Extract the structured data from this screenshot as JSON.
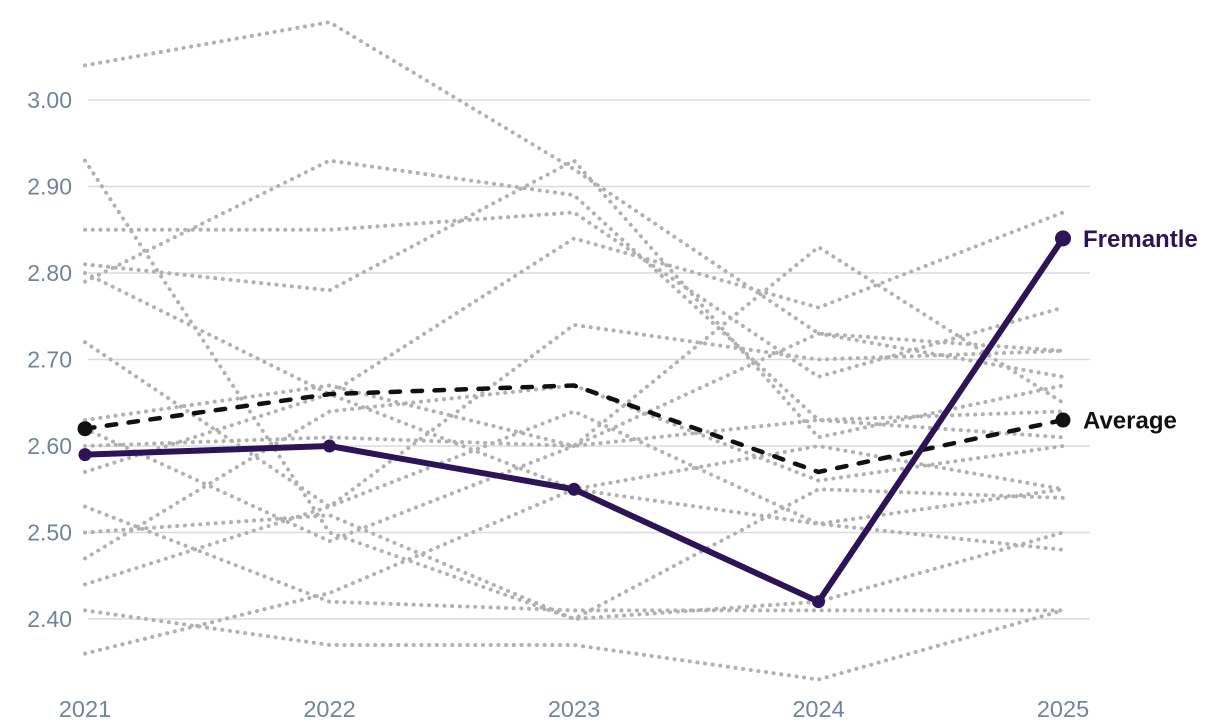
{
  "chart_data": {
    "type": "line",
    "title": "",
    "x": [
      "2021",
      "2022",
      "2023",
      "2024",
      "2025"
    ],
    "xlabel": "",
    "ylabel": "",
    "ylim": [
      2.31,
      3.11
    ],
    "yticks": [
      "2.40",
      "2.50",
      "2.60",
      "2.70",
      "2.80",
      "2.90",
      "3.00"
    ],
    "grid": true,
    "legend_position": "right-of-line-endpoints",
    "styles": {
      "highlight_color": "#2d1457",
      "average_color": "#111111",
      "background_line_color": "#b1b1b1",
      "gridline_color": "#d6dce6",
      "tick_label_color": "#73839d"
    },
    "series": [
      {
        "name": "Fremantle",
        "role": "highlight",
        "label": "Fremantle",
        "color": "#2d1457",
        "values": [
          2.59,
          2.6,
          2.55,
          2.42,
          2.84
        ]
      },
      {
        "name": "Average",
        "role": "average",
        "label": "Average",
        "color": "#111111",
        "values": [
          2.62,
          2.66,
          2.67,
          2.57,
          2.63
        ]
      },
      {
        "name": "other-1",
        "role": "background",
        "values": [
          3.04,
          3.09,
          2.92,
          2.73,
          2.71
        ]
      },
      {
        "name": "other-2",
        "role": "background",
        "values": [
          2.93,
          2.5,
          2.4,
          2.42,
          2.5
        ]
      },
      {
        "name": "other-3",
        "role": "background",
        "values": [
          2.85,
          2.85,
          2.87,
          2.68,
          2.76
        ]
      },
      {
        "name": "other-4",
        "role": "background",
        "values": [
          2.81,
          2.78,
          2.93,
          2.61,
          2.67
        ]
      },
      {
        "name": "other-5",
        "role": "background",
        "values": [
          2.8,
          2.66,
          2.84,
          2.76,
          2.87
        ]
      },
      {
        "name": "other-6",
        "role": "background",
        "values": [
          2.79,
          2.93,
          2.89,
          2.63,
          2.64
        ]
      },
      {
        "name": "other-7",
        "role": "background",
        "values": [
          2.72,
          2.53,
          2.74,
          2.7,
          2.71
        ]
      },
      {
        "name": "other-8",
        "role": "background",
        "values": [
          2.63,
          2.67,
          2.6,
          2.83,
          2.65
        ]
      },
      {
        "name": "other-9",
        "role": "background",
        "values": [
          2.62,
          2.49,
          2.6,
          2.73,
          2.68
        ]
      },
      {
        "name": "other-10",
        "role": "background",
        "values": [
          2.6,
          2.61,
          2.6,
          2.63,
          2.61
        ]
      },
      {
        "name": "other-11",
        "role": "background",
        "values": [
          2.57,
          2.66,
          2.55,
          2.51,
          2.55
        ]
      },
      {
        "name": "other-12",
        "role": "background",
        "values": [
          2.53,
          2.42,
          2.41,
          2.41,
          2.41
        ]
      },
      {
        "name": "other-13",
        "role": "background",
        "values": [
          2.5,
          2.52,
          2.4,
          2.55,
          2.54
        ]
      },
      {
        "name": "other-14",
        "role": "background",
        "values": [
          2.47,
          2.64,
          2.67,
          2.56,
          2.6
        ]
      },
      {
        "name": "other-15",
        "role": "background",
        "values": [
          2.44,
          2.53,
          2.64,
          2.51,
          2.48
        ]
      },
      {
        "name": "other-16",
        "role": "background",
        "values": [
          2.41,
          2.37,
          2.37,
          2.33,
          2.41
        ]
      },
      {
        "name": "other-17",
        "role": "background",
        "values": [
          2.36,
          2.43,
          2.55,
          2.6,
          2.55
        ]
      }
    ]
  },
  "labels": {
    "highlight": "Fremantle",
    "average": "Average"
  }
}
